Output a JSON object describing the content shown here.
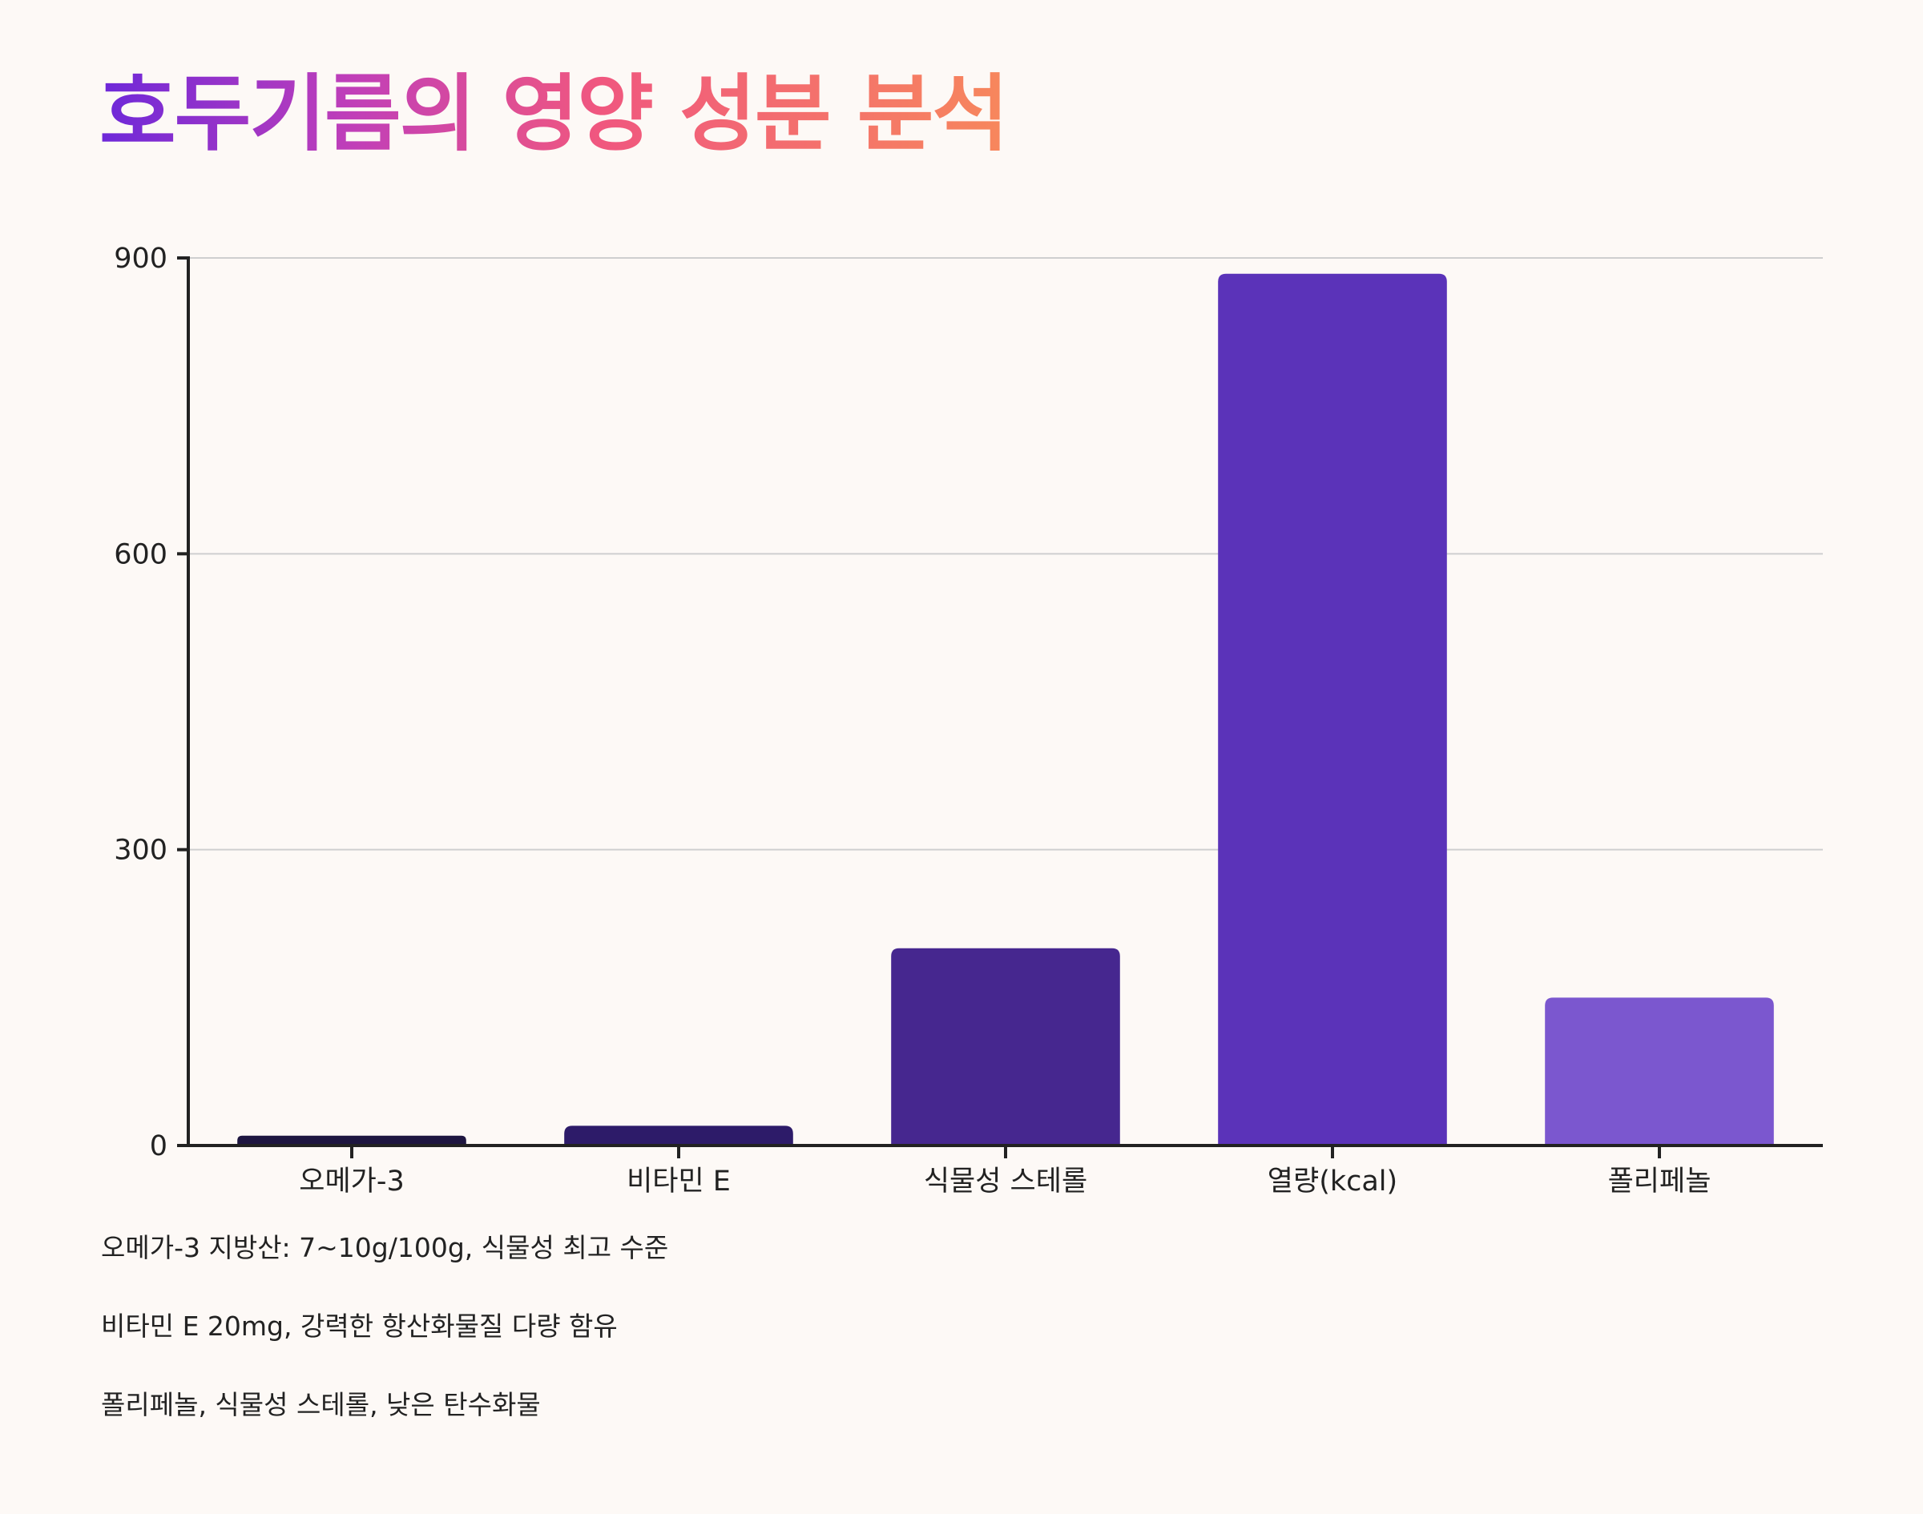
{
  "chart_data": {
    "type": "bar",
    "title": "호두기름의 영양 성분 분석",
    "categories": [
      "오메가-3",
      "비타민 E",
      "식물성 스테롤",
      "열량(kcal)",
      "폴리페놀"
    ],
    "values": [
      10,
      20,
      200,
      884,
      150
    ],
    "colors": [
      "#1e1640",
      "#2d1b69",
      "#46278f",
      "#5b33b9",
      "#7b57cf"
    ],
    "ylim": [
      0,
      900
    ],
    "yticks": [
      0,
      300,
      600,
      900
    ],
    "xlabel": "",
    "ylabel": "",
    "grid": "horizontal",
    "legend": "none"
  },
  "notes": [
    "오메가-3 지방산: 7~10g/100g, 식물성 최고 수준",
    "비타민 E 20mg, 강력한 항산화물질 다량 함유",
    "폴리페놀, 식물성 스테롤, 낮은 탄수화물"
  ]
}
